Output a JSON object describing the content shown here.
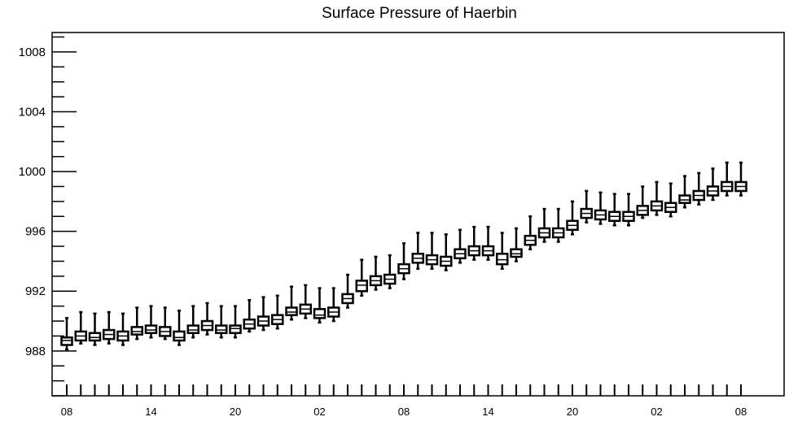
{
  "chart_data": {
    "type": "box",
    "title": "Surface Pressure of Haerbin",
    "xlabel": "",
    "ylabel": "",
    "ylim": [
      985,
      1009.3
    ],
    "yticks": [
      988,
      992,
      996,
      1000,
      1004,
      1008
    ],
    "ytick_labels": [
      "988",
      "992",
      "996",
      "1000",
      "1004",
      "1008"
    ],
    "xtick_labels": [
      "08",
      "14",
      "20",
      "02",
      "08",
      "14",
      "20",
      "02",
      "08"
    ],
    "xtick_positions": [
      0,
      6,
      12,
      18,
      24,
      30,
      36,
      42,
      48
    ],
    "grid": false,
    "legend": "none",
    "boxes": [
      {
        "x": 0,
        "min": 988.1,
        "q1": 988.4,
        "median": 988.7,
        "q3": 988.9,
        "max": 990.2
      },
      {
        "x": 1,
        "min": 988.5,
        "q1": 988.7,
        "median": 989.0,
        "q3": 989.3,
        "max": 990.6
      },
      {
        "x": 2,
        "min": 988.4,
        "q1": 988.7,
        "median": 988.9,
        "q3": 989.2,
        "max": 990.5
      },
      {
        "x": 3,
        "min": 988.5,
        "q1": 988.8,
        "median": 989.1,
        "q3": 989.4,
        "max": 990.6
      },
      {
        "x": 4,
        "min": 988.4,
        "q1": 988.7,
        "median": 989.0,
        "q3": 989.3,
        "max": 990.5
      },
      {
        "x": 5,
        "min": 988.8,
        "q1": 989.1,
        "median": 989.3,
        "q3": 989.6,
        "max": 990.9
      },
      {
        "x": 6,
        "min": 988.9,
        "q1": 989.2,
        "median": 989.4,
        "q3": 989.7,
        "max": 991.0
      },
      {
        "x": 7,
        "min": 988.8,
        "q1": 989.0,
        "median": 989.3,
        "q3": 989.6,
        "max": 990.9
      },
      {
        "x": 8,
        "min": 988.4,
        "q1": 988.7,
        "median": 988.9,
        "q3": 989.3,
        "max": 990.7
      },
      {
        "x": 9,
        "min": 988.9,
        "q1": 989.2,
        "median": 989.4,
        "q3": 989.7,
        "max": 991.0
      },
      {
        "x": 10,
        "min": 989.1,
        "q1": 989.4,
        "median": 989.7,
        "q3": 990.0,
        "max": 991.2
      },
      {
        "x": 11,
        "min": 988.9,
        "q1": 989.2,
        "median": 989.4,
        "q3": 989.7,
        "max": 991.0
      },
      {
        "x": 12,
        "min": 988.9,
        "q1": 989.2,
        "median": 989.5,
        "q3": 989.7,
        "max": 991.0
      },
      {
        "x": 13,
        "min": 989.3,
        "q1": 989.5,
        "median": 989.8,
        "q3": 990.1,
        "max": 991.4
      },
      {
        "x": 14,
        "min": 989.4,
        "q1": 989.7,
        "median": 990.0,
        "q3": 990.3,
        "max": 991.6
      },
      {
        "x": 15,
        "min": 989.5,
        "q1": 989.8,
        "median": 990.1,
        "q3": 990.4,
        "max": 991.7
      },
      {
        "x": 16,
        "min": 990.1,
        "q1": 990.4,
        "median": 990.6,
        "q3": 990.9,
        "max": 992.3
      },
      {
        "x": 17,
        "min": 990.2,
        "q1": 990.5,
        "median": 990.8,
        "q3": 991.1,
        "max": 992.4
      },
      {
        "x": 18,
        "min": 989.9,
        "q1": 990.2,
        "median": 990.4,
        "q3": 990.8,
        "max": 992.2
      },
      {
        "x": 19,
        "min": 990.0,
        "q1": 990.3,
        "median": 990.6,
        "q3": 990.9,
        "max": 992.2
      },
      {
        "x": 20,
        "min": 990.9,
        "q1": 991.2,
        "median": 991.5,
        "q3": 991.8,
        "max": 993.1
      },
      {
        "x": 21,
        "min": 991.7,
        "q1": 992.0,
        "median": 992.4,
        "q3": 992.7,
        "max": 994.1
      },
      {
        "x": 22,
        "min": 992.1,
        "q1": 992.4,
        "median": 992.7,
        "q3": 993.0,
        "max": 994.3
      },
      {
        "x": 23,
        "min": 992.2,
        "q1": 992.5,
        "median": 992.8,
        "q3": 993.1,
        "max": 994.4
      },
      {
        "x": 24,
        "min": 992.8,
        "q1": 993.2,
        "median": 993.5,
        "q3": 993.8,
        "max": 995.2
      },
      {
        "x": 25,
        "min": 993.5,
        "q1": 993.9,
        "median": 994.2,
        "q3": 994.5,
        "max": 995.9
      },
      {
        "x": 26,
        "min": 993.5,
        "q1": 993.8,
        "median": 994.1,
        "q3": 994.4,
        "max": 995.9
      },
      {
        "x": 27,
        "min": 993.4,
        "q1": 993.7,
        "median": 994.0,
        "q3": 994.3,
        "max": 995.8
      },
      {
        "x": 28,
        "min": 993.9,
        "q1": 994.2,
        "median": 994.5,
        "q3": 994.8,
        "max": 996.1
      },
      {
        "x": 29,
        "min": 994.1,
        "q1": 994.4,
        "median": 994.7,
        "q3": 995.0,
        "max": 996.3
      },
      {
        "x": 30,
        "min": 994.1,
        "q1": 994.4,
        "median": 994.7,
        "q3": 995.0,
        "max": 996.3
      },
      {
        "x": 31,
        "min": 993.5,
        "q1": 993.8,
        "median": 994.1,
        "q3": 994.5,
        "max": 995.9
      },
      {
        "x": 32,
        "min": 994.0,
        "q1": 994.3,
        "median": 994.5,
        "q3": 994.8,
        "max": 996.2
      },
      {
        "x": 33,
        "min": 994.8,
        "q1": 995.1,
        "median": 995.4,
        "q3": 995.7,
        "max": 997.0
      },
      {
        "x": 34,
        "min": 995.3,
        "q1": 995.6,
        "median": 995.9,
        "q3": 996.2,
        "max": 997.5
      },
      {
        "x": 35,
        "min": 995.3,
        "q1": 995.6,
        "median": 995.9,
        "q3": 996.2,
        "max": 997.5
      },
      {
        "x": 36,
        "min": 995.8,
        "q1": 996.1,
        "median": 996.4,
        "q3": 996.7,
        "max": 998.0
      },
      {
        "x": 37,
        "min": 996.6,
        "q1": 996.9,
        "median": 997.2,
        "q3": 997.5,
        "max": 998.7
      },
      {
        "x": 38,
        "min": 996.5,
        "q1": 996.8,
        "median": 997.1,
        "q3": 997.4,
        "max": 998.6
      },
      {
        "x": 39,
        "min": 996.4,
        "q1": 996.7,
        "median": 997.0,
        "q3": 997.3,
        "max": 998.5
      },
      {
        "x": 40,
        "min": 996.4,
        "q1": 996.7,
        "median": 997.0,
        "q3": 997.3,
        "max": 998.5
      },
      {
        "x": 41,
        "min": 996.9,
        "q1": 997.1,
        "median": 997.4,
        "q3": 997.7,
        "max": 999.0
      },
      {
        "x": 42,
        "min": 997.1,
        "q1": 997.4,
        "median": 997.7,
        "q3": 998.0,
        "max": 999.3
      },
      {
        "x": 43,
        "min": 997.0,
        "q1": 997.3,
        "median": 997.6,
        "q3": 997.9,
        "max": 999.2
      },
      {
        "x": 44,
        "min": 997.6,
        "q1": 997.9,
        "median": 998.1,
        "q3": 998.4,
        "max": 999.7
      },
      {
        "x": 45,
        "min": 997.8,
        "q1": 998.1,
        "median": 998.4,
        "q3": 998.7,
        "max": 999.9
      },
      {
        "x": 46,
        "min": 998.1,
        "q1": 998.4,
        "median": 998.7,
        "q3": 999.0,
        "max": 1000.2
      },
      {
        "x": 47,
        "min": 998.4,
        "q1": 998.7,
        "median": 999.0,
        "q3": 999.3,
        "max": 1000.6
      },
      {
        "x": 48,
        "min": 998.4,
        "q1": 998.7,
        "median": 999.0,
        "q3": 999.3,
        "max": 1000.6
      }
    ]
  }
}
